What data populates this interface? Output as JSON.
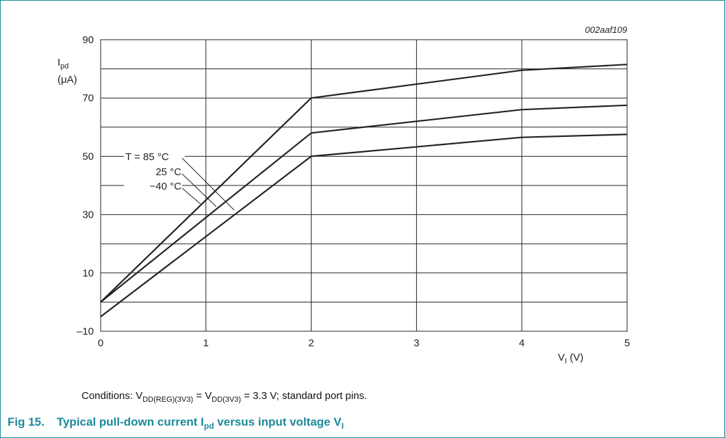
{
  "figure_id": "002aaf109",
  "axis_labels": {
    "y_main": "I",
    "y_sub": "pd",
    "y_unit": "(μA)",
    "x_main": "V",
    "x_sub": "I",
    "x_unit": " (V)"
  },
  "conditions": {
    "prefix": "Conditions: V",
    "sub1": "DD(REG)(3V3)",
    "mid": " = V",
    "sub2": "DD(3V3)",
    "suffix": " = 3.3 V; standard port pins."
  },
  "caption": {
    "number": "Fig 15.",
    "part1": "Typical pull-down current I",
    "sub1": "pd",
    "part2": " versus input voltage V",
    "sub2": "I"
  },
  "colors": {
    "accent": "#1b8a9a",
    "line": "#222222",
    "grid": "#222222"
  },
  "chart_data": {
    "type": "line",
    "x_range": [
      0,
      5
    ],
    "y_range": [
      -10,
      90
    ],
    "x_ticks": [
      0,
      1,
      2,
      3,
      4,
      5
    ],
    "y_ticks": [
      -10,
      10,
      30,
      50,
      70,
      90
    ],
    "grid": true,
    "series": [
      {
        "name": "T = 85 °C",
        "x": [
          0,
          2,
          4,
          5
        ],
        "y": [
          -5,
          50,
          56.5,
          57.5
        ]
      },
      {
        "name": "25 °C",
        "x": [
          0,
          2,
          4,
          5
        ],
        "y": [
          0,
          58,
          66,
          67.5
        ]
      },
      {
        "name": "−40 °C",
        "x": [
          0,
          2,
          4,
          5
        ],
        "y": [
          0,
          70,
          79.5,
          81.5
        ]
      }
    ]
  }
}
